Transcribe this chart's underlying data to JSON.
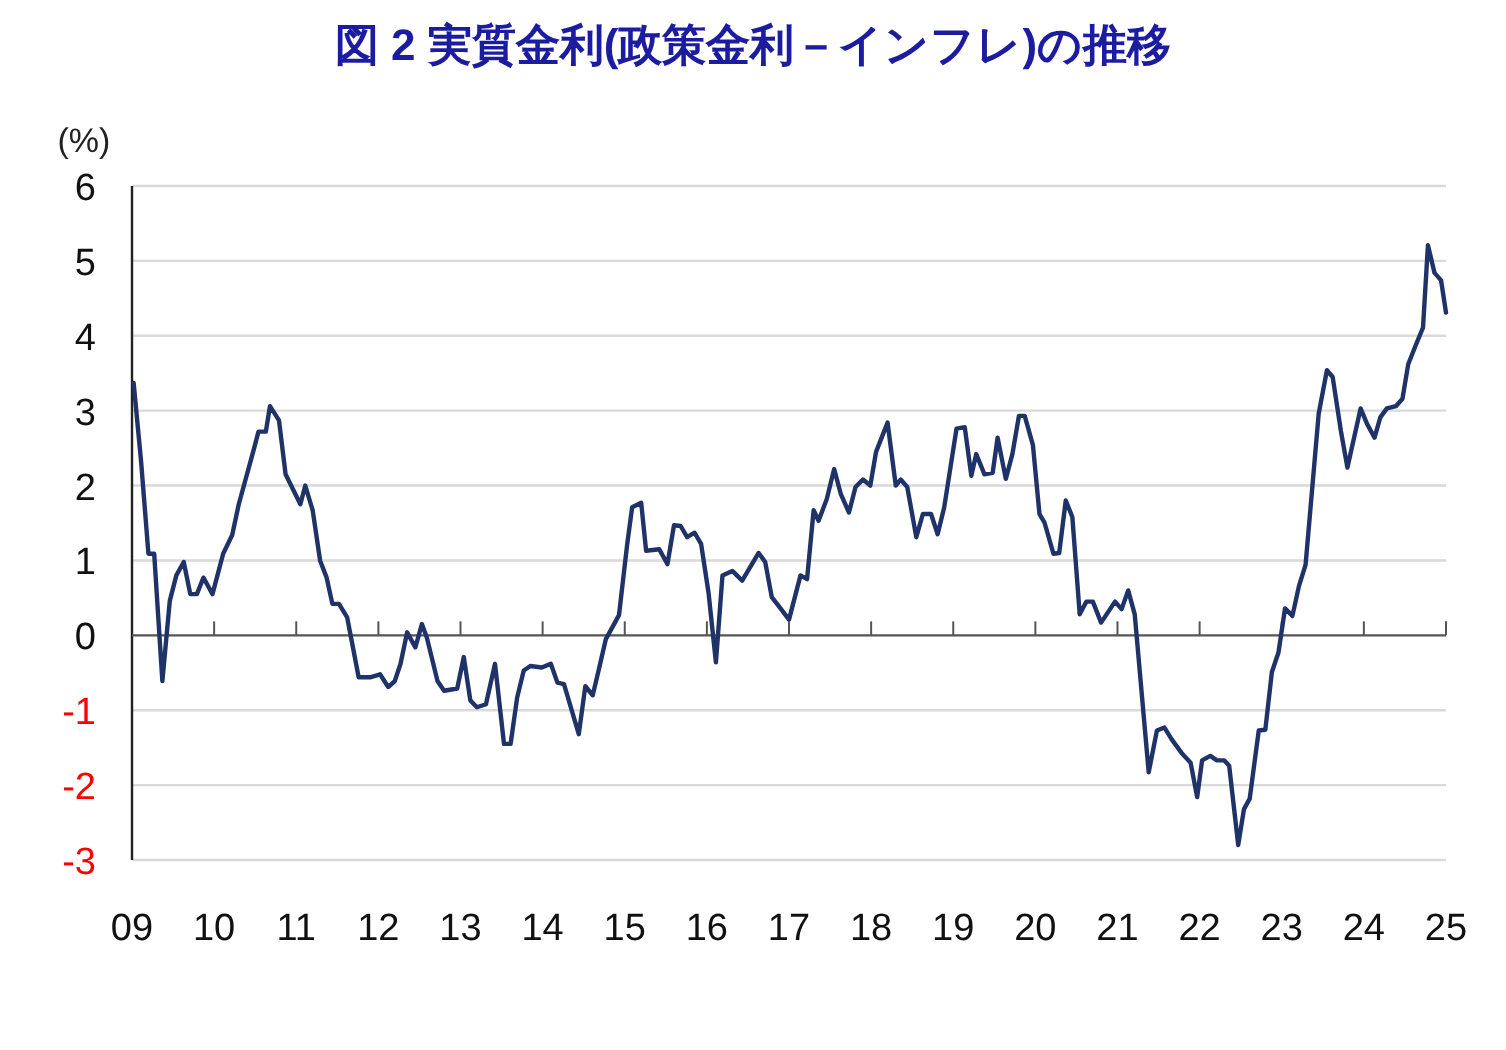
{
  "chart_data": {
    "type": "line",
    "title": "図 2  実質金利(政策金利－インフレ)の推移",
    "ylabel": "(%)",
    "x": [
      2009.02,
      2009.11,
      2009.2,
      2009.27,
      2009.37,
      2009.46,
      2009.54,
      2009.63,
      2009.71,
      2009.79,
      2009.87,
      2009.98,
      2010.11,
      2010.22,
      2010.3,
      2010.48,
      2010.54,
      2010.63,
      2010.68,
      2010.79,
      2010.87,
      2011.05,
      2011.11,
      2011.2,
      2011.29,
      2011.37,
      2011.44,
      2011.52,
      2011.62,
      2011.76,
      2011.9,
      2012.02,
      2012.12,
      2012.2,
      2012.27,
      2012.35,
      2012.45,
      2012.53,
      2012.59,
      2012.72,
      2012.8,
      2012.96,
      2013.04,
      2013.12,
      2013.2,
      2013.31,
      2013.42,
      2013.53,
      2013.61,
      2013.69,
      2013.77,
      2013.85,
      2013.99,
      2014.1,
      2014.18,
      2014.26,
      2014.44,
      2014.52,
      2014.61,
      2014.69,
      2014.77,
      2014.93,
      2015.03,
      2015.09,
      2015.2,
      2015.26,
      2015.42,
      2015.52,
      2015.6,
      2015.68,
      2015.76,
      2015.85,
      2015.93,
      2016.02,
      2016.11,
      2016.19,
      2016.31,
      2016.43,
      2016.63,
      2016.71,
      2016.79,
      2016.89,
      2017.0,
      2017.14,
      2017.22,
      2017.3,
      2017.36,
      2017.46,
      2017.55,
      2017.63,
      2017.73,
      2017.81,
      2017.9,
      2017.99,
      2018.06,
      2018.2,
      2018.3,
      2018.36,
      2018.44,
      2018.55,
      2018.63,
      2018.73,
      2018.81,
      2018.89,
      2019.04,
      2019.14,
      2019.22,
      2019.28,
      2019.38,
      2019.48,
      2019.54,
      2019.64,
      2019.72,
      2019.8,
      2019.87,
      2019.97,
      2020.05,
      2020.11,
      2020.22,
      2020.29,
      2020.37,
      2020.45,
      2020.54,
      2020.62,
      2020.7,
      2020.8,
      2020.97,
      2021.05,
      2021.13,
      2021.21,
      2021.38,
      2021.48,
      2021.57,
      2021.66,
      2021.78,
      2021.89,
      2021.97,
      2022.03,
      2022.13,
      2022.21,
      2022.3,
      2022.36,
      2022.47,
      2022.54,
      2022.61,
      2022.72,
      2022.8,
      2022.88,
      2022.96,
      2023.04,
      2023.13,
      2023.21,
      2023.29,
      2023.45,
      2023.55,
      2023.62,
      2023.72,
      2023.8,
      2023.96,
      2024.04,
      2024.13,
      2024.2,
      2024.28,
      2024.39,
      2024.47,
      2024.54,
      2024.63,
      2024.72,
      2024.78,
      2024.86,
      2024.94,
      2025.0
    ],
    "series": [
      {
        "color": "#1f3368",
        "values": [
          3.37,
          2.33,
          1.09,
          1.09,
          -0.61,
          0.46,
          0.8,
          0.98,
          0.55,
          0.55,
          0.77,
          0.55,
          1.09,
          1.34,
          1.75,
          2.47,
          2.72,
          2.72,
          3.06,
          2.87,
          2.15,
          1.75,
          2.0,
          1.67,
          1.0,
          0.77,
          0.42,
          0.42,
          0.24,
          -0.56,
          -0.56,
          -0.52,
          -0.69,
          -0.61,
          -0.38,
          0.04,
          -0.16,
          0.15,
          -0.03,
          -0.61,
          -0.74,
          -0.71,
          -0.29,
          -0.87,
          -0.96,
          -0.92,
          -0.38,
          -1.45,
          -1.45,
          -0.83,
          -0.47,
          -0.41,
          -0.43,
          -0.38,
          -0.63,
          -0.65,
          -1.32,
          -0.68,
          -0.8,
          -0.43,
          -0.05,
          0.27,
          1.22,
          1.71,
          1.77,
          1.13,
          1.15,
          0.95,
          1.47,
          1.46,
          1.31,
          1.37,
          1.22,
          0.57,
          -0.36,
          0.8,
          0.86,
          0.73,
          1.1,
          0.98,
          0.51,
          0.37,
          0.21,
          0.8,
          0.75,
          1.67,
          1.53,
          1.82,
          2.22,
          1.89,
          1.64,
          1.98,
          2.08,
          2.0,
          2.45,
          2.84,
          2.0,
          2.08,
          1.98,
          1.31,
          1.62,
          1.62,
          1.35,
          1.71,
          2.76,
          2.78,
          2.13,
          2.42,
          2.15,
          2.17,
          2.64,
          2.09,
          2.42,
          2.93,
          2.93,
          2.54,
          1.62,
          1.51,
          1.09,
          1.1,
          1.8,
          1.58,
          0.28,
          0.45,
          0.45,
          0.17,
          0.45,
          0.35,
          0.6,
          0.28,
          -1.83,
          -1.27,
          -1.23,
          -1.39,
          -1.57,
          -1.7,
          -2.16,
          -1.67,
          -1.61,
          -1.67,
          -1.67,
          -1.74,
          -2.8,
          -2.32,
          -2.18,
          -1.27,
          -1.26,
          -0.49,
          -0.23,
          0.36,
          0.26,
          0.66,
          0.94,
          2.96,
          3.54,
          3.45,
          2.73,
          2.24,
          3.03,
          2.82,
          2.64,
          2.91,
          3.03,
          3.06,
          3.16,
          3.62,
          3.87,
          4.11,
          5.21,
          4.84,
          4.74,
          4.31
        ]
      }
    ],
    "xlim": [
      2009,
      2025
    ],
    "xticks": [
      {
        "value": 2009,
        "label": "09"
      },
      {
        "value": 2010,
        "label": "10"
      },
      {
        "value": 2011,
        "label": "11"
      },
      {
        "value": 2012,
        "label": "12"
      },
      {
        "value": 2013,
        "label": "13"
      },
      {
        "value": 2014,
        "label": "14"
      },
      {
        "value": 2015,
        "label": "15"
      },
      {
        "value": 2016,
        "label": "16"
      },
      {
        "value": 2017,
        "label": "17"
      },
      {
        "value": 2018,
        "label": "18"
      },
      {
        "value": 2019,
        "label": "19"
      },
      {
        "value": 2020,
        "label": "20"
      },
      {
        "value": 2021,
        "label": "21"
      },
      {
        "value": 2022,
        "label": "22"
      },
      {
        "value": 2023,
        "label": "23"
      },
      {
        "value": 2024,
        "label": "24"
      },
      {
        "value": 2025,
        "label": "25"
      }
    ],
    "ylim": [
      -3,
      6
    ],
    "yticks": [
      -3,
      -2,
      -1,
      0,
      1,
      2,
      3,
      4,
      5,
      6
    ],
    "grid": "y",
    "marker": "none",
    "line_style": "solid"
  }
}
